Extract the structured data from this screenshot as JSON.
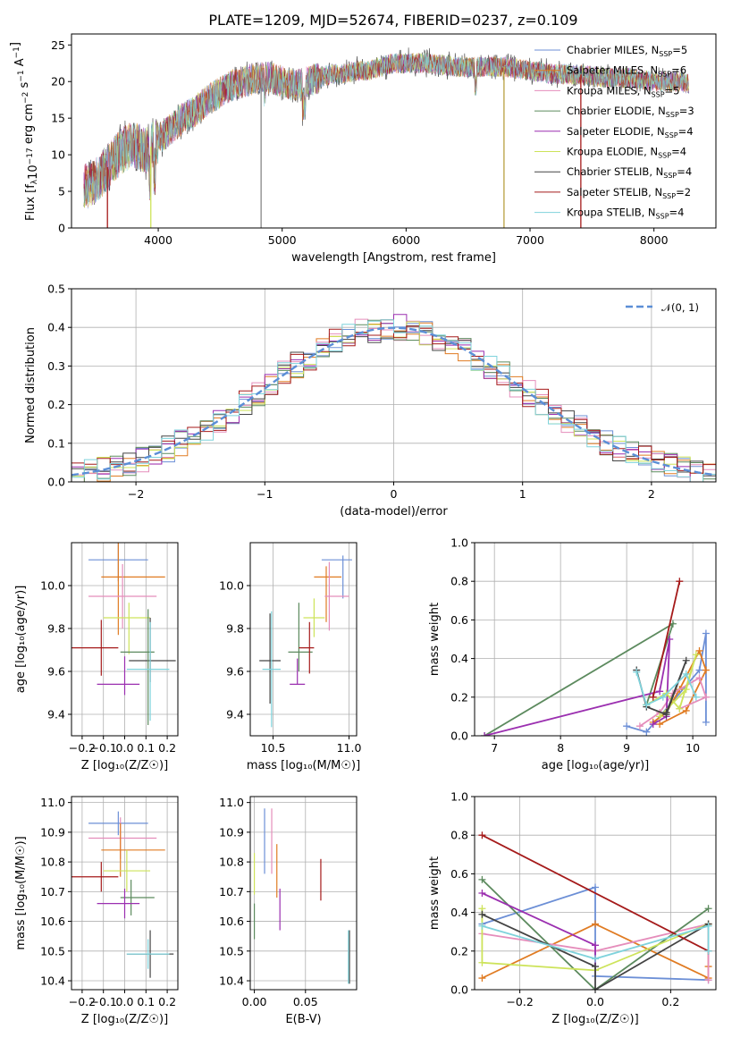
{
  "figure": {
    "title": "PLATE=1209, MJD=52674, FIBERID=0237, z=0.109"
  },
  "series": [
    {
      "name": "Chabrier MILES, N",
      "sub": "SSP",
      "tail": "=5",
      "color": "#6c8fd6"
    },
    {
      "name": "Salpeter MILES, N",
      "sub": "SSP",
      "tail": "=6",
      "color": "#e07b22"
    },
    {
      "name": "Kroupa MILES, N",
      "sub": "SSP",
      "tail": "=5",
      "color": "#e58dbb"
    },
    {
      "name": "Chabrier ELODIE, N",
      "sub": "SSP",
      "tail": "=3",
      "color": "#5c8a5e"
    },
    {
      "name": "Salpeter ELODIE, N",
      "sub": "SSP",
      "tail": "=4",
      "color": "#9b2fb0"
    },
    {
      "name": "Kroupa ELODIE, N",
      "sub": "SSP",
      "tail": "=4",
      "color": "#cde35a"
    },
    {
      "name": "Chabrier STELIB, N",
      "sub": "SSP",
      "tail": "=4",
      "color": "#444444"
    },
    {
      "name": "Salpeter STELIB, N",
      "sub": "SSP",
      "tail": "=2",
      "color": "#a51a1a"
    },
    {
      "name": "Kroupa STELIB, N",
      "sub": "SSP",
      "tail": "=4",
      "color": "#7fd3dc"
    }
  ],
  "chart_data": [
    {
      "id": "spectrum",
      "type": "line",
      "xlabel": "wavelength [Angstrom, rest frame]",
      "ylabel": "Flux [f",
      "ylabel_sub": "λ",
      "ylabel_mid": "10",
      "ylabel_sup1": "−17",
      "ylabel_end": " erg cm",
      "ylabel_sup2": "−2",
      "ylabel_s": " s",
      "ylabel_sup3": "−1",
      "ylabel_A": " A",
      "ylabel_sup4": "−1",
      "ylabel_close": "]",
      "xlim": [
        3300,
        8500
      ],
      "ylim": [
        0,
        26.5
      ],
      "xticks": [
        4000,
        5000,
        6000,
        7000,
        8000
      ],
      "yticks": [
        0,
        5,
        10,
        15,
        20,
        25
      ],
      "continuum": {
        "x": [
          3400,
          3500,
          3600,
          3700,
          3800,
          3900,
          4000,
          4100,
          4200,
          4300,
          4400,
          4500,
          4600,
          4700,
          4800,
          4900,
          5000,
          5100,
          5200,
          5300,
          5400,
          5500,
          5600,
          5700,
          5800,
          5900,
          6000,
          6200,
          6400,
          6600,
          6800,
          7000,
          7200,
          7400,
          7600,
          7800,
          8000,
          8200,
          8300
        ],
        "y": [
          5.5,
          6.5,
          8.5,
          10.5,
          11.5,
          10.5,
          12,
          13.5,
          15,
          16,
          17.5,
          18.5,
          19.5,
          20,
          20.5,
          20.5,
          20,
          19.5,
          20,
          20.5,
          21,
          21,
          21.5,
          21.5,
          22,
          22.5,
          22.5,
          22.5,
          22,
          22,
          22,
          21.5,
          21,
          21,
          20.5,
          20.5,
          20,
          20,
          19.5
        ]
      },
      "dropouts": [
        {
          "x": 3590,
          "y0": 0,
          "color": "#a51a1a"
        },
        {
          "x": 3940,
          "y0": 0,
          "color": "#cde35a"
        },
        {
          "x": 4830,
          "y0": 0,
          "color": "#888888"
        },
        {
          "x": 6790,
          "y0": 0,
          "color": "#b8a040"
        },
        {
          "x": 7410,
          "y0": 0,
          "color": "#a51a1a"
        }
      ]
    },
    {
      "id": "residuals",
      "type": "histogram",
      "xlabel": "(data-model)/error",
      "ylabel": "Normed distribution",
      "xlim": [
        -2.5,
        2.5
      ],
      "ylim": [
        0,
        0.5
      ],
      "xticks": [
        -2,
        -1,
        0,
        1,
        2
      ],
      "yticks": [
        0.0,
        0.1,
        0.2,
        0.3,
        0.4,
        0.5
      ],
      "reference_curve": {
        "name": "𝒩(0, 1)",
        "mean": 0,
        "sigma": 1,
        "color": "#5b8ed6"
      },
      "bin_width": 0.1,
      "bin_start": -2.5
    },
    {
      "id": "age_vs_Z",
      "type": "errorbar",
      "xlabel": "Z [log₁₀(Z/Z☉)]",
      "ylabel": "age  [log₁₀(age/yr)]",
      "xlim": [
        -0.25,
        0.25
      ],
      "ylim": [
        9.3,
        10.2
      ],
      "xticks": [
        -0.2,
        -0.1,
        0.0,
        0.1,
        0.2
      ],
      "yticks": [
        9.4,
        9.6,
        9.8,
        10.0
      ],
      "points": [
        {
          "s": 0,
          "x": -0.03,
          "y": 10.12,
          "xe": 0.14,
          "ye": 0.0
        },
        {
          "s": 0,
          "x": -0.03,
          "y": 10.12,
          "xe": 0.0,
          "ye": 0.1
        },
        {
          "s": 1,
          "x": 0.04,
          "y": 10.04,
          "xe": 0.15,
          "ye": 0.0
        },
        {
          "s": 1,
          "x": -0.03,
          "y": 10.0,
          "xe": 0.0,
          "ye": 0.23
        },
        {
          "s": 2,
          "x": -0.01,
          "y": 9.95,
          "xe": 0.16,
          "ye": 0.0
        },
        {
          "s": 2,
          "x": -0.01,
          "y": 9.95,
          "xe": 0.0,
          "ye": 0.15
        },
        {
          "s": 5,
          "x": 0.01,
          "y": 9.85,
          "xe": 0.11,
          "ye": 0.0
        },
        {
          "s": 5,
          "x": 0.02,
          "y": 9.8,
          "xe": 0.0,
          "ye": 0.12
        },
        {
          "s": 6,
          "x": 0.13,
          "y": 9.65,
          "xe": 0.11,
          "ye": 0.0
        },
        {
          "s": 6,
          "x": 0.12,
          "y": 9.7,
          "xe": 0.0,
          "ye": 0.15
        },
        {
          "s": 3,
          "x": 0.06,
          "y": 9.69,
          "xe": 0.08,
          "ye": 0.0
        },
        {
          "s": 3,
          "x": 0.11,
          "y": 9.62,
          "xe": 0.0,
          "ye": 0.27
        },
        {
          "s": 7,
          "x": -0.16,
          "y": 9.71,
          "xe": 0.13,
          "ye": 0.0
        },
        {
          "s": 7,
          "x": -0.11,
          "y": 9.71,
          "xe": 0.0,
          "ye": 0.13
        },
        {
          "s": 8,
          "x": 0.11,
          "y": 9.61,
          "xe": 0.1,
          "ye": 0.0
        },
        {
          "s": 8,
          "x": 0.12,
          "y": 9.6,
          "xe": 0.0,
          "ye": 0.23
        },
        {
          "s": 4,
          "x": -0.03,
          "y": 9.54,
          "xe": 0.1,
          "ye": 0.0
        },
        {
          "s": 4,
          "x": 0.0,
          "y": 9.58,
          "xe": 0.0,
          "ye": 0.09
        }
      ]
    },
    {
      "id": "age_vs_mass",
      "type": "errorbar",
      "xlabel": "mass [log₁₀(M/M☉)]",
      "ylabel": "",
      "xlim": [
        10.35,
        11.05
      ],
      "ylim": [
        9.3,
        10.2
      ],
      "xticks": [
        10.5,
        11.0
      ],
      "yticks": [
        9.4,
        9.6,
        9.8,
        10.0
      ],
      "points": [
        {
          "s": 0,
          "x": 10.92,
          "y": 10.12,
          "xe": 0.1,
          "ye": 0.0
        },
        {
          "s": 0,
          "x": 10.96,
          "y": 10.04,
          "xe": 0.0,
          "ye": 0.1
        },
        {
          "s": 1,
          "x": 10.86,
          "y": 10.04,
          "xe": 0.09,
          "ye": 0.0
        },
        {
          "s": 1,
          "x": 10.85,
          "y": 9.96,
          "xe": 0.0,
          "ye": 0.13
        },
        {
          "s": 2,
          "x": 10.92,
          "y": 9.95,
          "xe": 0.08,
          "ye": 0.0
        },
        {
          "s": 2,
          "x": 10.87,
          "y": 9.95,
          "xe": 0.0,
          "ye": 0.16
        },
        {
          "s": 5,
          "x": 10.77,
          "y": 9.85,
          "xe": 0.07,
          "ye": 0.0
        },
        {
          "s": 5,
          "x": 10.77,
          "y": 9.85,
          "xe": 0.0,
          "ye": 0.09
        },
        {
          "s": 3,
          "x": 10.68,
          "y": 9.69,
          "xe": 0.08,
          "ye": 0.0
        },
        {
          "s": 3,
          "x": 10.67,
          "y": 9.76,
          "xe": 0.0,
          "ye": 0.16
        },
        {
          "s": 7,
          "x": 10.72,
          "y": 9.71,
          "xe": 0.05,
          "ye": 0.0
        },
        {
          "s": 7,
          "x": 10.74,
          "y": 9.71,
          "xe": 0.0,
          "ye": 0.12
        },
        {
          "s": 6,
          "x": 10.48,
          "y": 9.65,
          "xe": 0.07,
          "ye": 0.0
        },
        {
          "s": 6,
          "x": 10.48,
          "y": 9.66,
          "xe": 0.0,
          "ye": 0.21
        },
        {
          "s": 8,
          "x": 10.49,
          "y": 9.61,
          "xe": 0.06,
          "ye": 0.0
        },
        {
          "s": 8,
          "x": 10.49,
          "y": 9.61,
          "xe": 0.0,
          "ye": 0.27
        },
        {
          "s": 4,
          "x": 10.66,
          "y": 9.54,
          "xe": 0.05,
          "ye": 0.0
        },
        {
          "s": 4,
          "x": 10.66,
          "y": 9.6,
          "xe": 0.0,
          "ye": 0.06
        }
      ]
    },
    {
      "id": "mass_weight_vs_age",
      "type": "line",
      "xlabel": "age  [log₁₀(age/yr)]",
      "ylabel": "mass weight",
      "xlim": [
        6.7,
        10.35
      ],
      "ylim": [
        0,
        1
      ],
      "xticks": [
        7,
        8,
        9,
        10
      ],
      "yticks": [
        0.0,
        0.2,
        0.4,
        0.6,
        0.8,
        1.0
      ],
      "lines": [
        {
          "s": 0,
          "x": [
            9.0,
            9.3,
            10.1,
            10.2,
            10.2
          ],
          "y": [
            0.05,
            0.02,
            0.34,
            0.53,
            0.07
          ]
        },
        {
          "s": 1,
          "x": [
            9.4,
            9.6,
            9.8,
            10.1,
            10.2,
            9.9,
            9.5
          ],
          "y": [
            0.07,
            0.12,
            0.24,
            0.44,
            0.34,
            0.13,
            0.06
          ]
        },
        {
          "s": 2,
          "x": [
            9.2,
            9.5,
            9.7,
            10.1,
            10.2,
            9.8
          ],
          "y": [
            0.05,
            0.12,
            0.22,
            0.3,
            0.2,
            0.14
          ]
        },
        {
          "s": 3,
          "x": [
            6.85,
            9.7,
            9.3
          ],
          "y": [
            0.0,
            0.58,
            0.16
          ]
        },
        {
          "s": 4,
          "x": [
            6.85,
            9.5,
            9.65,
            9.6,
            9.4
          ],
          "y": [
            0.0,
            0.23,
            0.5,
            0.1,
            0.06
          ]
        },
        {
          "s": 5,
          "x": [
            9.3,
            9.6,
            9.8,
            10.05,
            9.9,
            9.5
          ],
          "y": [
            0.16,
            0.22,
            0.14,
            0.42,
            0.24,
            0.1
          ]
        },
        {
          "s": 6,
          "x": [
            9.15,
            9.3,
            9.6,
            9.9,
            9.6
          ],
          "y": [
            0.34,
            0.15,
            0.11,
            0.39,
            0.12
          ]
        },
        {
          "s": 7,
          "x": [
            9.4,
            9.8
          ],
          "y": [
            0.2,
            0.8
          ]
        },
        {
          "s": 8,
          "x": [
            9.15,
            9.3,
            9.55,
            9.9,
            10.05
          ],
          "y": [
            0.33,
            0.16,
            0.2,
            0.32,
            0.2
          ]
        }
      ]
    },
    {
      "id": "mass_vs_Z",
      "type": "errorbar",
      "xlabel": "Z [log₁₀(Z/Z☉)]",
      "ylabel": "mass [log₁₀(M/M☉)]",
      "xlim": [
        -0.25,
        0.25
      ],
      "ylim": [
        10.37,
        11.02
      ],
      "xticks": [
        -0.2,
        -0.1,
        0.0,
        0.1,
        0.2
      ],
      "yticks": [
        10.4,
        10.5,
        10.6,
        10.7,
        10.8,
        10.9,
        11.0
      ],
      "points": [
        {
          "s": 0,
          "x": -0.03,
          "y": 10.93,
          "xe": 0.14,
          "ye": 0.0
        },
        {
          "s": 0,
          "x": -0.03,
          "y": 10.93,
          "xe": 0.0,
          "ye": 0.04
        },
        {
          "s": 2,
          "x": -0.01,
          "y": 10.88,
          "xe": 0.16,
          "ye": 0.0
        },
        {
          "s": 2,
          "x": -0.02,
          "y": 10.88,
          "xe": 0.0,
          "ye": 0.07
        },
        {
          "s": 1,
          "x": 0.04,
          "y": 10.84,
          "xe": 0.15,
          "ye": 0.0
        },
        {
          "s": 1,
          "x": -0.02,
          "y": 10.84,
          "xe": 0.0,
          "ye": 0.09
        },
        {
          "s": 5,
          "x": 0.01,
          "y": 10.77,
          "xe": 0.11,
          "ye": 0.0
        },
        {
          "s": 5,
          "x": 0.01,
          "y": 10.77,
          "xe": 0.0,
          "ye": 0.07
        },
        {
          "s": 7,
          "x": -0.16,
          "y": 10.75,
          "xe": 0.13,
          "ye": 0.0
        },
        {
          "s": 7,
          "x": -0.11,
          "y": 10.75,
          "xe": 0.0,
          "ye": 0.05
        },
        {
          "s": 3,
          "x": 0.06,
          "y": 10.68,
          "xe": 0.08,
          "ye": 0.0
        },
        {
          "s": 3,
          "x": 0.03,
          "y": 10.68,
          "xe": 0.0,
          "ye": 0.06
        },
        {
          "s": 4,
          "x": -0.03,
          "y": 10.66,
          "xe": 0.1,
          "ye": 0.0
        },
        {
          "s": 4,
          "x": 0.0,
          "y": 10.66,
          "xe": 0.0,
          "ye": 0.05
        },
        {
          "s": 6,
          "x": 0.12,
          "y": 10.49,
          "xe": 0.11,
          "ye": 0.0
        },
        {
          "s": 6,
          "x": 0.12,
          "y": 10.49,
          "xe": 0.0,
          "ye": 0.08
        },
        {
          "s": 8,
          "x": 0.11,
          "y": 10.49,
          "xe": 0.1,
          "ye": 0.0
        },
        {
          "s": 8,
          "x": 0.11,
          "y": 10.49,
          "xe": 0.0,
          "ye": 0.05
        }
      ]
    },
    {
      "id": "mass_vs_EBV",
      "type": "errorbar",
      "xlabel": "E(B-V)",
      "ylabel": "",
      "xlim": [
        -0.004,
        0.1
      ],
      "ylim": [
        10.37,
        11.02
      ],
      "xticks": [
        0.0,
        0.05
      ],
      "yticks": [
        10.4,
        10.5,
        10.6,
        10.7,
        10.8,
        10.9,
        11.0
      ],
      "points": [
        {
          "s": 0,
          "x": 0.01,
          "y": 10.87,
          "xe": 0.0,
          "ye": 0.11
        },
        {
          "s": 2,
          "x": 0.017,
          "y": 10.87,
          "xe": 0.0,
          "ye": 0.11
        },
        {
          "s": 1,
          "x": 0.022,
          "y": 10.77,
          "xe": 0.0,
          "ye": 0.09
        },
        {
          "s": 5,
          "x": 0.0,
          "y": 10.76,
          "xe": 0.0,
          "ye": 0.07
        },
        {
          "s": 3,
          "x": 0.0,
          "y": 10.6,
          "xe": 0.0,
          "ye": 0.06
        },
        {
          "s": 4,
          "x": 0.025,
          "y": 10.64,
          "xe": 0.0,
          "ye": 0.07
        },
        {
          "s": 7,
          "x": 0.065,
          "y": 10.74,
          "xe": 0.0,
          "ye": 0.07
        },
        {
          "s": 6,
          "x": 0.093,
          "y": 10.48,
          "xe": 0.0,
          "ye": 0.09
        },
        {
          "s": 8,
          "x": 0.092,
          "y": 10.48,
          "xe": 0.0,
          "ye": 0.09
        }
      ]
    },
    {
      "id": "mass_weight_vs_Z",
      "type": "line",
      "xlabel": "Z [log₁₀(Z/Z☉)]",
      "ylabel": "mass weight",
      "xlim": [
        -0.32,
        0.32
      ],
      "ylim": [
        0,
        1
      ],
      "xticks": [
        -0.2,
        0.0,
        0.2
      ],
      "yticks": [
        0.0,
        0.2,
        0.4,
        0.6,
        0.8,
        1.0
      ],
      "lines": [
        {
          "s": 0,
          "x": [
            -0.3,
            0.0,
            0.0,
            0.3
          ],
          "y": [
            0.34,
            0.53,
            0.07,
            0.05
          ]
        },
        {
          "s": 1,
          "x": [
            -0.3,
            0.0,
            0.3,
            0.3,
            0.3
          ],
          "y": [
            0.06,
            0.34,
            0.06,
            0.12,
            0.34
          ]
        },
        {
          "s": 2,
          "x": [
            -0.3,
            0.0,
            0.3,
            0.3
          ],
          "y": [
            0.29,
            0.2,
            0.34,
            0.05
          ]
        },
        {
          "s": 3,
          "x": [
            -0.3,
            0.0,
            0.3
          ],
          "y": [
            0.57,
            0.0,
            0.42
          ]
        },
        {
          "s": 4,
          "x": [
            -0.3,
            0.0,
            0.0
          ],
          "y": [
            0.5,
            0.23,
            0.1
          ]
        },
        {
          "s": 5,
          "x": [
            -0.3,
            -0.3,
            0.0,
            0.3
          ],
          "y": [
            0.42,
            0.14,
            0.1,
            0.34
          ]
        },
        {
          "s": 6,
          "x": [
            -0.3,
            0.0,
            0.0,
            0.3
          ],
          "y": [
            0.39,
            0.12,
            0.0,
            0.34
          ]
        },
        {
          "s": 7,
          "x": [
            -0.3,
            0.3
          ],
          "y": [
            0.8,
            0.2
          ]
        },
        {
          "s": 8,
          "x": [
            -0.3,
            0.0,
            0.3,
            0.3
          ],
          "y": [
            0.33,
            0.16,
            0.33,
            0.2
          ]
        }
      ]
    }
  ]
}
